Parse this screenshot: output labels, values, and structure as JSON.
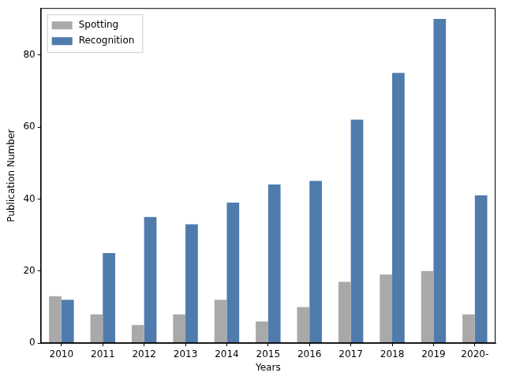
{
  "chart_data": {
    "type": "bar",
    "x_label": "Years",
    "y_label": "Publication Number",
    "categories": [
      "2010",
      "2011",
      "2012",
      "2013",
      "2014",
      "2015",
      "2016",
      "2017",
      "2018",
      "2019",
      "2020-"
    ],
    "series": [
      {
        "name": "Spotting",
        "color": "#a9a9a9",
        "values": [
          13,
          8,
          5,
          8,
          12,
          6,
          10,
          17,
          19,
          20,
          8
        ]
      },
      {
        "name": "Recognition",
        "color": "#4f7bad",
        "values": [
          12,
          25,
          35,
          33,
          39,
          44,
          45,
          62,
          75,
          90,
          41
        ]
      }
    ],
    "ylim": [
      0,
      93
    ],
    "yticks": [
      0,
      20,
      40,
      60,
      80
    ],
    "grid": false,
    "legend": "upper left"
  }
}
